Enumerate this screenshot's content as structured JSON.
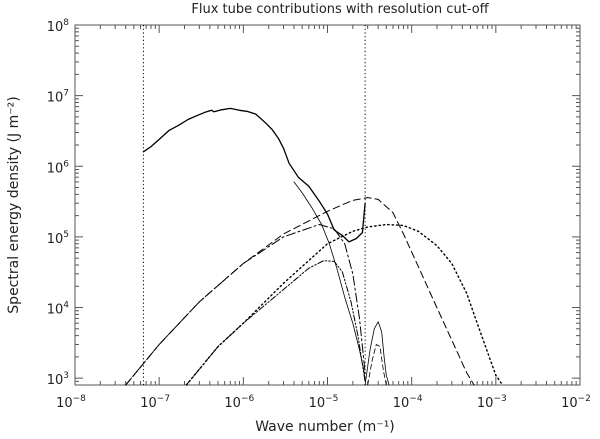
{
  "chart_data": {
    "type": "line",
    "title": "Flux tube contributions with resolution cut-off",
    "xlabel": "Wave number (m⁻¹)",
    "ylabel": "Spectral energy density (J m⁻²)",
    "xscale": "log",
    "yscale": "log",
    "xlim": [
      1e-08,
      0.01
    ],
    "ylim": [
      800,
      100000000.0
    ],
    "x_ticks": [
      {
        "base": "10",
        "exp": "−8",
        "value": 1e-08
      },
      {
        "base": "10",
        "exp": "−7",
        "value": 1e-07
      },
      {
        "base": "10",
        "exp": "−6",
        "value": 1e-06
      },
      {
        "base": "10",
        "exp": "−5",
        "value": 1e-05
      },
      {
        "base": "10",
        "exp": "−4",
        "value": 0.0001
      },
      {
        "base": "10",
        "exp": "−3",
        "value": 0.001
      },
      {
        "base": "10",
        "exp": "−2",
        "value": 0.01
      }
    ],
    "y_ticks": [
      {
        "base": "10",
        "exp": "3",
        "value": 1000.0
      },
      {
        "base": "10",
        "exp": "4",
        "value": 10000.0
      },
      {
        "base": "10",
        "exp": "5",
        "value": 100000.0
      },
      {
        "base": "10",
        "exp": "6",
        "value": 1000000.0
      },
      {
        "base": "10",
        "exp": "7",
        "value": 10000000.0
      },
      {
        "base": "10",
        "exp": "8",
        "value": 100000000.0
      }
    ],
    "cutoffs": [
      6.5e-08,
      2.8e-05
    ],
    "series": [
      {
        "style": "solid",
        "color": "#000000",
        "width": 1.3,
        "x": [
          6.5e-08,
          8e-08,
          1e-07,
          1.3e-07,
          1.7e-07,
          2.2e-07,
          2.8e-07,
          3.5e-07,
          4.2e-07,
          4.5e-07,
          5.5e-07,
          7e-07,
          9e-07,
          1.1e-06,
          1.4e-06,
          1.8e-06,
          2.2e-06,
          2.6e-06,
          3e-06,
          3.5e-06,
          4.5e-06,
          6e-06,
          8e-06,
          1e-05,
          1.2e-05,
          1.5e-05,
          1.8e-05,
          2.2e-05,
          2.6e-05,
          2.8e-05
        ],
        "y": [
          1600000.0,
          1900000.0,
          2400000.0,
          3200000.0,
          3800000.0,
          4600000.0,
          5200000.0,
          5800000.0,
          6200000.0,
          5900000.0,
          6300000.0,
          6600000.0,
          6200000.0,
          6000000.0,
          5500000.0,
          4200000.0,
          3300000.0,
          2500000.0,
          1800000.0,
          1100000.0,
          700000.0,
          520000.0,
          320000.0,
          210000.0,
          125000.0,
          105000.0,
          85000.0,
          95000.0,
          115000.0,
          300000.0
        ]
      },
      {
        "style": "thin",
        "color": "#000000",
        "width": 0.8,
        "x": [
          4e-06,
          5e-06,
          6.5e-06,
          8.5e-06,
          1.05e-05,
          1.3e-05,
          1.6e-05,
          2e-05,
          2.4e-05,
          2.7e-05,
          2.8e-05
        ],
        "y": [
          600000.0,
          420000.0,
          260000.0,
          150000.0,
          80000.0,
          35000.0,
          14000.0,
          6000.0,
          2500.0,
          1300.0,
          900
        ]
      },
      {
        "style": "dashed",
        "color": "#000000",
        "width": 1,
        "x": [
          4e-08,
          1e-07,
          3e-07,
          1e-06,
          3e-06,
          1e-05,
          2e-05,
          3e-05,
          4e-05,
          6e-05,
          8e-05,
          0.00012,
          0.00018,
          0.00026,
          0.00035,
          0.00045,
          0.00055
        ],
        "y": [
          800,
          3000.0,
          12000.0,
          42000.0,
          110000.0,
          230000.0,
          330000.0,
          360000.0,
          340000.0,
          220000.0,
          110000.0,
          38000.0,
          13000.0,
          5000.0,
          2300.0,
          1200.0,
          800
        ]
      },
      {
        "style": "dotted",
        "color": "#000000",
        "width": 1.4,
        "x": [
          2.1e-07,
          5e-07,
          1e-06,
          3e-06,
          1e-05,
          2e-05,
          3e-05,
          5e-05,
          8e-05,
          0.00012,
          0.0002,
          0.0003,
          0.00045,
          0.0006,
          0.0008,
          0.001,
          0.0012
        ],
        "y": [
          800,
          2800.0,
          6000.0,
          22000.0,
          80000.0,
          120000.0,
          138000.0,
          150000.0,
          145000.0,
          120000.0,
          75000.0,
          42000.0,
          16000.0,
          6000.0,
          2300.0,
          1100.0,
          800
        ]
      },
      {
        "style": "dashdot",
        "color": "#000000",
        "width": 1,
        "x": [
          4e-08,
          1e-07,
          3e-07,
          1e-06,
          3e-06,
          8e-06,
          1.2e-05,
          1.6e-05,
          2e-05,
          2.4e-05,
          2.8e-05
        ],
        "y": [
          800,
          3000.0,
          12000.0,
          42000.0,
          100000.0,
          150000.0,
          130000.0,
          80000.0,
          30000.0,
          7000.0,
          1200.0
        ]
      },
      {
        "style": "dashdotdot",
        "color": "#000000",
        "width": 1,
        "x": [
          2.1e-07,
          5e-07,
          1e-06,
          3e-06,
          6e-06,
          9e-06,
          1.2e-05,
          1.5e-05,
          1.9e-05,
          2.3e-05,
          2.8e-05
        ],
        "y": [
          800,
          2800.0,
          6000.0,
          18000.0,
          36000.0,
          46000.0,
          45000.0,
          32000.0,
          12000.0,
          4000.0,
          900
        ]
      },
      {
        "style": "solid-thin",
        "color": "#000000",
        "width": 0.8,
        "x": [
          2.8e-05,
          3.2e-05,
          3.6e-05,
          4e-05,
          4.4e-05,
          4.7e-05,
          5e-05,
          5.4e-05
        ],
        "y": [
          800,
          2500.0,
          5000.0,
          6300.0,
          4500.0,
          2000.0,
          1100.0,
          800
        ]
      },
      {
        "style": "dashed-thin",
        "color": "#000000",
        "width": 0.8,
        "x": [
          3e-05,
          3.4e-05,
          3.8e-05,
          4.2e-05,
          4.6e-05,
          5e-05
        ],
        "y": [
          800,
          1800.0,
          3000.0,
          2800.0,
          1300.0,
          800
        ]
      }
    ]
  }
}
